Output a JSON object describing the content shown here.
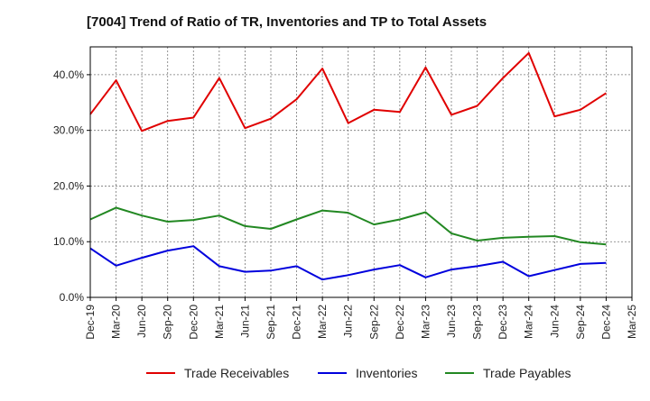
{
  "chart_data": {
    "type": "line",
    "title": "[7004]  Trend of Ratio of TR, Inventories and TP to Total Assets",
    "xlabel": "",
    "ylabel": "",
    "x": [
      "Dec-19",
      "Mar-20",
      "Jun-20",
      "Sep-20",
      "Dec-20",
      "Mar-21",
      "Jun-21",
      "Sep-21",
      "Dec-21",
      "Mar-22",
      "Jun-22",
      "Sep-22",
      "Dec-22",
      "Mar-23",
      "Jun-23",
      "Sep-23",
      "Dec-23",
      "Mar-24",
      "Jun-24",
      "Sep-24",
      "Dec-24",
      "Mar-25"
    ],
    "ylim": [
      0,
      45
    ],
    "yticks": [
      0,
      10,
      20,
      30,
      40
    ],
    "ytick_labels": [
      "0.0%",
      "10.0%",
      "20.0%",
      "30.0%",
      "40.0%"
    ],
    "grid": true,
    "legend_position": "bottom",
    "series": [
      {
        "name": "Trade Receivables",
        "color": "#e00000",
        "values": [
          32.9,
          39.0,
          29.9,
          31.7,
          32.3,
          39.4,
          30.4,
          32.1,
          35.6,
          41.1,
          31.3,
          33.7,
          33.3,
          41.3,
          32.8,
          34.4,
          39.4,
          43.9,
          32.5,
          33.7,
          36.7,
          null
        ]
      },
      {
        "name": "Inventories",
        "color": "#0000dd",
        "values": [
          8.8,
          5.7,
          7.1,
          8.4,
          9.2,
          5.6,
          4.6,
          4.8,
          5.6,
          3.2,
          4.0,
          5.0,
          5.8,
          3.6,
          5.0,
          5.6,
          6.4,
          3.8,
          4.9,
          6.0,
          6.2,
          null
        ]
      },
      {
        "name": "Trade Payables",
        "color": "#228822",
        "values": [
          14.0,
          16.1,
          14.7,
          13.6,
          13.9,
          14.7,
          12.8,
          12.3,
          14.0,
          15.6,
          15.2,
          13.1,
          14.0,
          15.3,
          11.5,
          10.2,
          10.7,
          10.9,
          11.0,
          9.9,
          9.5,
          null
        ]
      }
    ]
  }
}
